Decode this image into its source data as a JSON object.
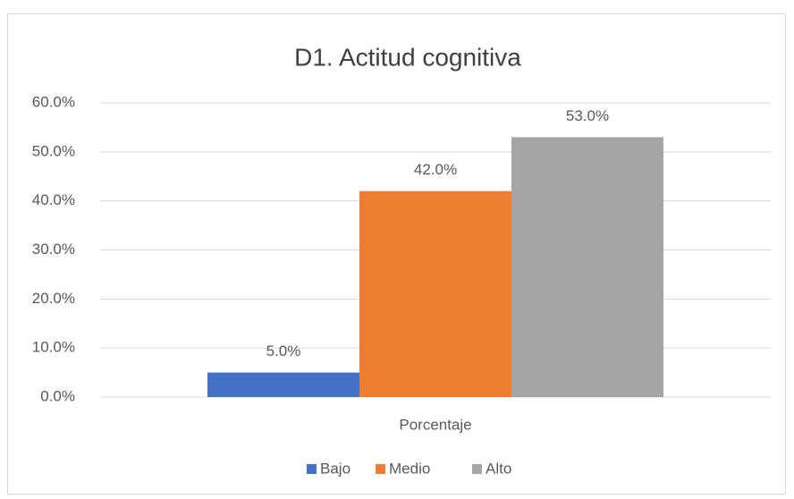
{
  "chart_data": {
    "type": "bar",
    "title": "D1. Actitud cognitiva",
    "categories": [
      "Porcentaje"
    ],
    "series": [
      {
        "name": "Bajo",
        "color": "#4472c4",
        "values": [
          5
        ],
        "value_labels": [
          "5.0%"
        ]
      },
      {
        "name": "Medio",
        "color": "#ed7d31",
        "values": [
          42
        ],
        "value_labels": [
          "42.0%"
        ]
      },
      {
        "name": "Alto",
        "color": "#a5a5a5",
        "values": [
          53
        ],
        "value_labels": [
          "53.0%"
        ]
      }
    ],
    "ylim": [
      0,
      60
    ],
    "yticks": [
      {
        "value": 0,
        "label": "0.0%"
      },
      {
        "value": 10,
        "label": "10.0%"
      },
      {
        "value": 20,
        "label": "20.0%"
      },
      {
        "value": 30,
        "label": "30.0%"
      },
      {
        "value": 40,
        "label": "40.0%"
      },
      {
        "value": 50,
        "label": "50.0%"
      },
      {
        "value": 60,
        "label": "60.0%"
      }
    ],
    "grid": true,
    "legend": "bottom"
  }
}
